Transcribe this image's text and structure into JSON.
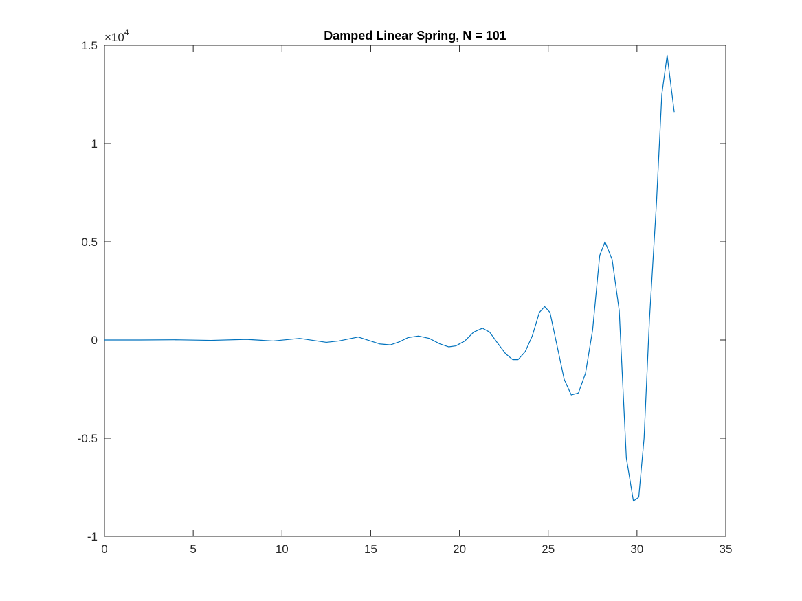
{
  "chart_data": {
    "type": "line",
    "title": "Damped Linear Spring, N = 101",
    "xlabel": "",
    "ylabel": "",
    "xlim": [
      0,
      35
    ],
    "ylim": [
      -1.0,
      1.5
    ],
    "y_exponent_base": "×10",
    "y_exponent_power": "4",
    "xticks": [
      0,
      5,
      10,
      15,
      20,
      25,
      30,
      35
    ],
    "xtick_labels": [
      "0",
      "5",
      "10",
      "15",
      "20",
      "25",
      "30",
      "35"
    ],
    "yticks": [
      -1.0,
      -0.5,
      0,
      0.5,
      1.0,
      1.5
    ],
    "ytick_labels": [
      "-1",
      "-0.5",
      "0",
      "0.5",
      "1",
      "1.5"
    ],
    "grid": false,
    "line_color": "#0072bd",
    "axis_color": "#262626",
    "series": [
      {
        "x": [
          0,
          2,
          4,
          6,
          8,
          9.5,
          11,
          12.5,
          13.2,
          14.3,
          15.5,
          16.1,
          16.6,
          17.1,
          17.7,
          18.3,
          18.9,
          19.4,
          19.8,
          20.3,
          20.8,
          21.3,
          21.7,
          22.1,
          22.6,
          23.0,
          23.3,
          23.7,
          24.1,
          24.5,
          24.8,
          25.1,
          25.5,
          25.9,
          26.3,
          26.7,
          27.1,
          27.5,
          27.9,
          28.2,
          28.6,
          29.0,
          29.4,
          29.8,
          30.1,
          30.4,
          30.7,
          31.1,
          31.4,
          31.7,
          32.1
        ],
        "y": [
          0,
          0,
          0.001,
          -0.002,
          0.003,
          -0.005,
          0.008,
          -0.012,
          -0.005,
          0.015,
          -0.02,
          -0.025,
          -0.01,
          0.012,
          0.02,
          0.008,
          -0.02,
          -0.035,
          -0.03,
          -0.005,
          0.04,
          0.06,
          0.04,
          -0.01,
          -0.07,
          -0.1,
          -0.1,
          -0.06,
          0.02,
          0.14,
          0.17,
          0.14,
          -0.03,
          -0.2,
          -0.28,
          -0.27,
          -0.17,
          0.05,
          0.43,
          0.5,
          0.41,
          0.15,
          -0.6,
          -0.82,
          -0.8,
          -0.5,
          0.1,
          0.7,
          1.25,
          1.45,
          1.16
        ]
      }
    ]
  }
}
